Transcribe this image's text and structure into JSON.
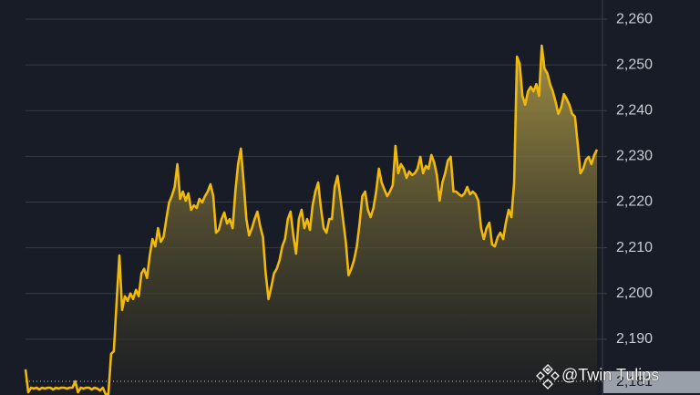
{
  "chart_data": {
    "type": "area",
    "values": [
      2183.4,
      2178.4,
      2179.4,
      2179.2,
      2179.4,
      2179.0,
      2179.4,
      2179.2,
      2179.4,
      2179.4,
      2179.0,
      2179.4,
      2179.2,
      2179.4,
      2179.4,
      2179.2,
      2179.4,
      2179.4,
      2180.8,
      2178.4,
      2179.4,
      2179.2,
      2179.4,
      2179.4,
      2179.0,
      2179.4,
      2179.2,
      2178.8,
      2179.4,
      2178.0,
      2178.0,
      2186.8,
      2187.4,
      2198.4,
      2208.3,
      2196.4,
      2199.4,
      2198.4,
      2200.0,
      2198.8,
      2200.8,
      2199.4,
      2204.4,
      2205.4,
      2203.4,
      2208.3,
      2211.9,
      2210.3,
      2214.3,
      2211.3,
      2212.3,
      2216.3,
      2219.9,
      2221.3,
      2223.3,
      2228.3,
      2220.7,
      2222.3,
      2220.3,
      2221.9,
      2218.3,
      2219.3,
      2218.7,
      2220.7,
      2219.9,
      2221.3,
      2222.3,
      2223.9,
      2221.3,
      2213.3,
      2213.9,
      2216.3,
      2217.7,
      2215.3,
      2216.3,
      2214.3,
      2222.3,
      2228.3,
      2231.7,
      2224.3,
      2216.3,
      2212.7,
      2214.3,
      2216.3,
      2217.9,
      2214.7,
      2212.3,
      2204.4,
      2198.8,
      2201.4,
      2204.4,
      2205.4,
      2207.3,
      2210.3,
      2211.9,
      2216.3,
      2217.9,
      2212.7,
      2208.7,
      2216.3,
      2218.3,
      2214.3,
      2216.3,
      2213.9,
      2219.3,
      2222.3,
      2224.3,
      2218.7,
      2214.3,
      2213.3,
      2216.3,
      2216.3,
      2223.3,
      2225.7,
      2221.3,
      2216.3,
      2211.3,
      2204.0,
      2205.4,
      2207.3,
      2210.3,
      2215.3,
      2221.3,
      2222.3,
      2218.3,
      2216.7,
      2218.7,
      2222.3,
      2227.3,
      2224.3,
      2222.7,
      2221.3,
      2222.3,
      2223.7,
      2232.3,
      2226.3,
      2228.3,
      2227.3,
      2225.3,
      2226.7,
      2225.9,
      2226.3,
      2227.3,
      2229.9,
      2226.3,
      2227.9,
      2227.3,
      2230.3,
      2228.7,
      2225.9,
      2220.3,
      2224.3,
      2226.3,
      2229.1,
      2229.9,
      2222.3,
      2222.3,
      2221.7,
      2221.3,
      2221.9,
      2223.3,
      2221.7,
      2222.3,
      2221.7,
      2220.3,
      2214.3,
      2211.9,
      2214.3,
      2215.5,
      2210.7,
      2210.3,
      2212.3,
      2213.3,
      2211.9,
      2215.5,
      2218.3,
      2216.7,
      2224.3,
      2251.8,
      2250.2,
      2243.2,
      2241.3,
      2244.2,
      2245.2,
      2244.2,
      2245.8,
      2243.2,
      2254.2,
      2249.2,
      2248.2,
      2245.8,
      2244.2,
      2241.9,
      2239.3,
      2240.7,
      2243.6,
      2242.6,
      2241.3,
      2239.3,
      2238.7,
      2232.7,
      2226.3,
      2227.3,
      2229.3,
      2229.9,
      2228.3,
      2230.3,
      2231.5
    ],
    "color": "#f0b90b",
    "ylim": [
      2177.8,
      2264.2
    ],
    "yticks": [
      {
        "value": 2190,
        "label": "2,190"
      },
      {
        "value": 2200,
        "label": "2,200"
      },
      {
        "value": 2210,
        "label": "2,210"
      },
      {
        "value": 2220,
        "label": "2,220"
      },
      {
        "value": 2230,
        "label": "2,230"
      },
      {
        "value": 2240,
        "label": "2,240"
      },
      {
        "value": 2250,
        "label": "2,250"
      },
      {
        "value": 2260,
        "label": "2,260"
      }
    ],
    "grid": true,
    "reference_line": {
      "value": 2180.8,
      "label": "2,181"
    },
    "watermark": "@Twin Tulips"
  }
}
